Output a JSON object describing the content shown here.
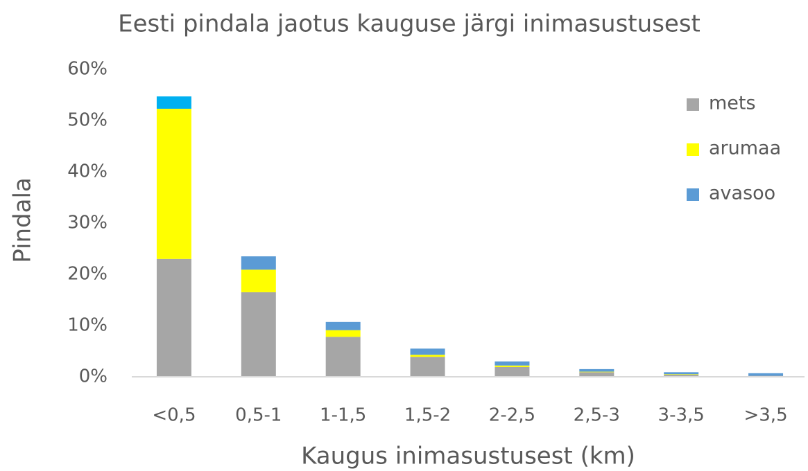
{
  "chart_data": {
    "type": "stacked_bar",
    "title": "Eesti pindala jaotus kauguse järgi inimasustusest",
    "x_label": "Kaugus inimasustusest (km)",
    "y_label": "Pindala",
    "categories": [
      "<0,5",
      "0,5-1",
      "1-1,5",
      "1,5-2",
      "2-2,5",
      "2,5-3",
      "3-3,5",
      ">3,5"
    ],
    "series": [
      {
        "name": "mets",
        "color": "#a6a6a6",
        "values": [
          23.0,
          16.5,
          7.8,
          3.9,
          1.9,
          0.9,
          0.4,
          0.2
        ]
      },
      {
        "name": "arumaa",
        "color": "#ffff00",
        "values": [
          29.3,
          4.4,
          1.3,
          0.4,
          0.3,
          0.1,
          0.1,
          0
        ]
      },
      {
        "name": "avasoo",
        "color": "#5b9bd5",
        "colors": [
          "#00b0f0",
          "#5b9bd5",
          "#5b9bd5",
          "#5b9bd5",
          "#5b9bd5",
          "#5b9bd5",
          "#5b9bd5",
          "#5b9bd5"
        ],
        "values": [
          2.4,
          2.6,
          1.6,
          1.2,
          0.8,
          0.5,
          0.4,
          0.5
        ]
      }
    ],
    "ylim": [
      0,
      60
    ],
    "yticks": [
      {
        "value": 0,
        "label": "0%"
      },
      {
        "value": 10,
        "label": "10%"
      },
      {
        "value": 20,
        "label": "20%"
      },
      {
        "value": 30,
        "label": "30%"
      },
      {
        "value": 40,
        "label": "40%"
      },
      {
        "value": 50,
        "label": "50%"
      },
      {
        "value": 60,
        "label": "60%"
      }
    ],
    "grid": false,
    "legend": "upper right"
  }
}
